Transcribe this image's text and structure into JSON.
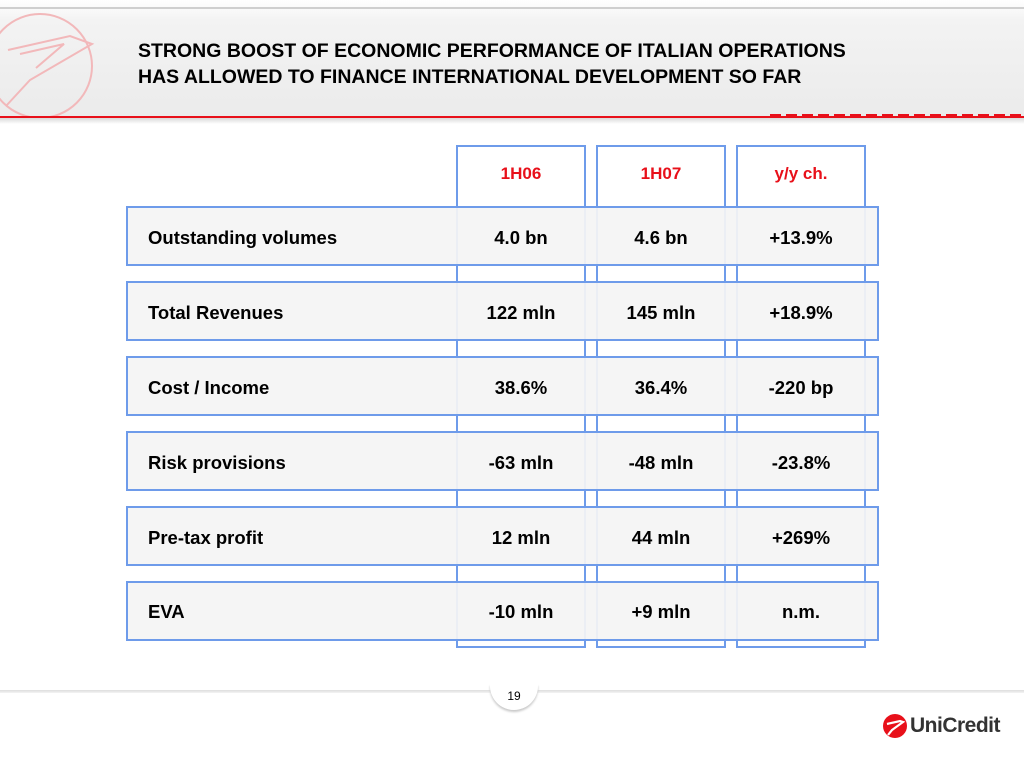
{
  "title": {
    "line1": "STRONG BOOST OF ECONOMIC PERFORMANCE OF ITALIAN OPERATIONS",
    "line2": "HAS ALLOWED TO FINANCE INTERNATIONAL DEVELOPMENT SO FAR"
  },
  "colors": {
    "accent_red": "#e8101a",
    "border_blue": "#6e9bea"
  },
  "table": {
    "headers": [
      "1H06",
      "1H07",
      "y/y ch."
    ],
    "rows": [
      {
        "label": "Outstanding volumes",
        "h06": "4.0 bn",
        "h07": "4.6 bn",
        "change": "+13.9%"
      },
      {
        "label": "Total Revenues",
        "h06": "122 mln",
        "h07": "145 mln",
        "change": "+18.9%"
      },
      {
        "label": "Cost / Income",
        "h06": "38.6%",
        "h07": "36.4%",
        "change": "-220 bp"
      },
      {
        "label": "Risk provisions",
        "h06": "-63 mln",
        "h07": "-48 mln",
        "change": "-23.8%"
      },
      {
        "label": "Pre-tax profit",
        "h06": "12 mln",
        "h07": "44 mln",
        "change": "+269%"
      },
      {
        "label": "EVA",
        "h06": "-10 mln",
        "h07": "+9 mln",
        "change": "n.m."
      }
    ]
  },
  "footer": {
    "page_number": "19",
    "brand_name": "UniCredit",
    "brand_icon": "unicredit-logo-icon"
  }
}
